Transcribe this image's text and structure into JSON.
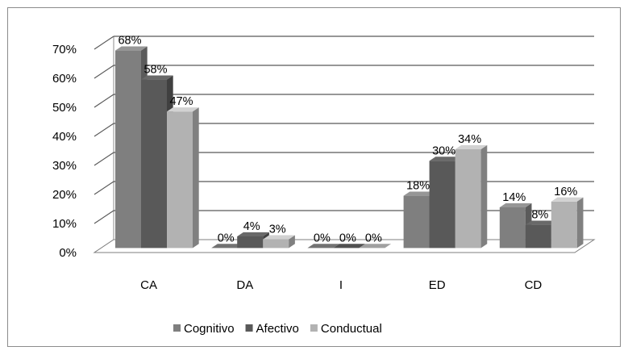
{
  "chart_data": {
    "type": "bar",
    "categories": [
      "CA",
      "DA",
      "I",
      "ED",
      "CD"
    ],
    "series": [
      {
        "name": "Cognitivo",
        "values": [
          68,
          0,
          0,
          18,
          14
        ],
        "labels": [
          "68%",
          "0%",
          "0%",
          "18%",
          "14%"
        ],
        "color": "#7f7f7f"
      },
      {
        "name": "Afectivo",
        "values": [
          58,
          4,
          0,
          30,
          8
        ],
        "labels": [
          "58%",
          "4%",
          "0%",
          "30%",
          "8%"
        ],
        "color": "#595959"
      },
      {
        "name": "Conductual",
        "values": [
          47,
          3,
          0,
          34,
          16
        ],
        "labels": [
          "47%",
          "3%",
          "0%",
          "34%",
          "16%"
        ],
        "color": "#b2b2b2"
      }
    ],
    "yticks": [
      "0%",
      "10%",
      "20%",
      "30%",
      "40%",
      "50%",
      "60%",
      "70%"
    ],
    "ylim": [
      0,
      70
    ],
    "grid": true,
    "legend": "bottom",
    "style": "3d-clustered-column"
  }
}
